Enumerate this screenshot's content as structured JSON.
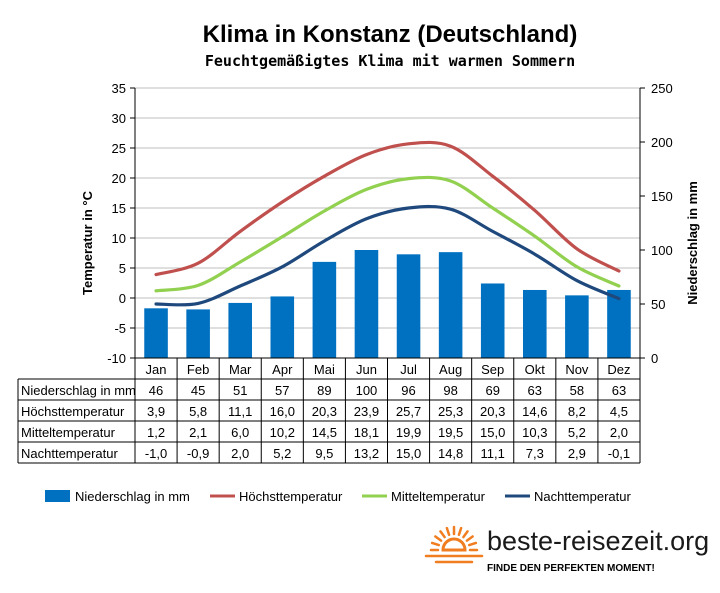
{
  "chart_data": {
    "type": "bar+line",
    "title": "Klima in Konstanz (Deutschland)",
    "subtitle": "Feuchtgemäßigtes Klima mit warmen Sommern",
    "categories": [
      "Jan",
      "Feb",
      "Mar",
      "Apr",
      "Mai",
      "Jun",
      "Jul",
      "Aug",
      "Sep",
      "Okt",
      "Nov",
      "Dez"
    ],
    "ylabel_left": "Temperatur in °C",
    "ylabel_right": "Niederschlag in mm",
    "ylim_left": [
      -10,
      35
    ],
    "ylim_right": [
      0,
      250
    ],
    "yticks_left": [
      -10,
      -5,
      0,
      5,
      10,
      15,
      20,
      25,
      30,
      35
    ],
    "yticks_right": [
      0,
      50,
      100,
      150,
      200,
      250
    ],
    "grid": true,
    "legend_position": "bottom",
    "bar_series": {
      "name": "Niederschlag in mm",
      "axis": "right",
      "color": "#0070c0",
      "values": [
        46,
        45,
        51,
        57,
        89,
        100,
        96,
        98,
        69,
        63,
        58,
        63
      ],
      "display": [
        "46",
        "45",
        "51",
        "57",
        "89",
        "100",
        "96",
        "98",
        "69",
        "63",
        "58",
        "63"
      ]
    },
    "line_series": [
      {
        "name": "Höchsttemperatur",
        "axis": "left",
        "color": "#c0504d",
        "values": [
          3.9,
          5.8,
          11.1,
          16.0,
          20.3,
          23.9,
          25.7,
          25.3,
          20.3,
          14.6,
          8.2,
          4.5
        ],
        "display": [
          "3,9",
          "5,8",
          "11,1",
          "16,0",
          "20,3",
          "23,9",
          "25,7",
          "25,3",
          "20,3",
          "14,6",
          "8,2",
          "4,5"
        ]
      },
      {
        "name": "Mitteltemperatur",
        "axis": "left",
        "color": "#92d050",
        "values": [
          1.2,
          2.1,
          6.0,
          10.2,
          14.5,
          18.1,
          19.9,
          19.5,
          15.0,
          10.3,
          5.2,
          2.0
        ],
        "display": [
          "1,2",
          "2,1",
          "6,0",
          "10,2",
          "14,5",
          "18,1",
          "19,9",
          "19,5",
          "15,0",
          "10,3",
          "5,2",
          "2,0"
        ]
      },
      {
        "name": "Nachttemperatur",
        "axis": "left",
        "color": "#1f497d",
        "values": [
          -1.0,
          -0.9,
          2.0,
          5.2,
          9.5,
          13.2,
          15.0,
          14.8,
          11.1,
          7.3,
          2.9,
          -0.1
        ],
        "display": [
          "-1,0",
          "-0,9",
          "2,0",
          "5,2",
          "9,5",
          "13,2",
          "15,0",
          "14,8",
          "11,1",
          "7,3",
          "2,9",
          "-0,1"
        ]
      }
    ],
    "table_rows": [
      "Niederschlag in mm",
      "Höchsttemperatur",
      "Mitteltemperatur",
      "Nachttemperatur"
    ]
  },
  "brand": {
    "name": "beste-reisezeit.org",
    "tagline": "FINDE DEN PERFEKTEN MOMENT!",
    "sun_color": "#f07d1f"
  }
}
